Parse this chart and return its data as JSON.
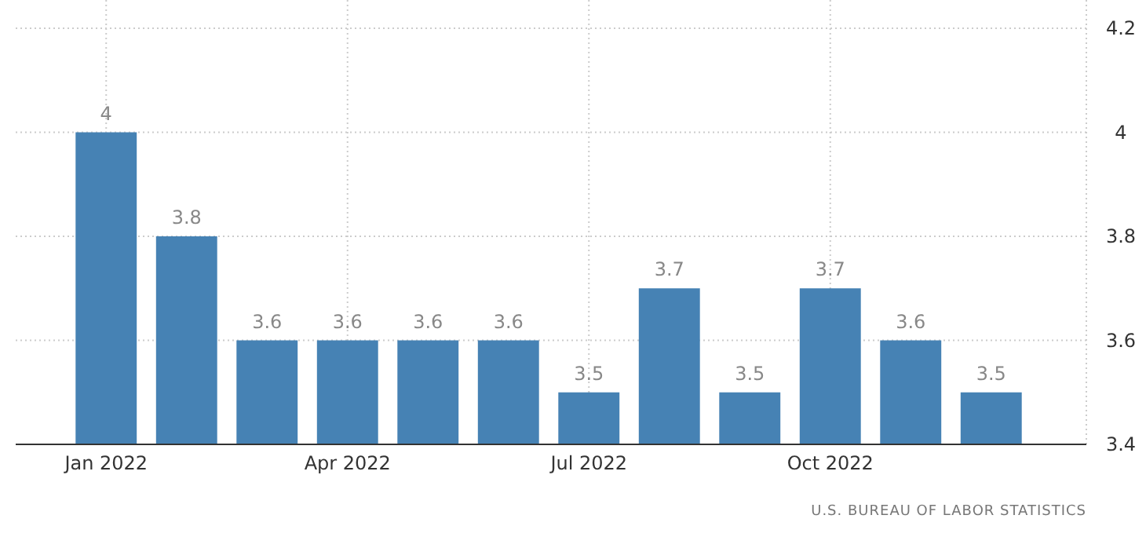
{
  "chart_data": {
    "type": "bar",
    "categories": [
      "Jan 2022",
      null,
      null,
      "Apr 2022",
      null,
      null,
      "Jul 2022",
      null,
      null,
      "Oct 2022",
      null,
      null
    ],
    "values": [
      4,
      3.8,
      3.6,
      3.6,
      3.6,
      3.6,
      3.5,
      3.7,
      3.5,
      3.7,
      3.6,
      3.5
    ],
    "color": "#4682b4",
    "ylim": [
      3.4,
      4.2
    ],
    "yticks": [
      3.4,
      3.6,
      3.8,
      4,
      4.2
    ],
    "grid": true,
    "data_labels": true,
    "annotations": [
      "U.S. BUREAU OF LABOR STATISTICS"
    ]
  }
}
